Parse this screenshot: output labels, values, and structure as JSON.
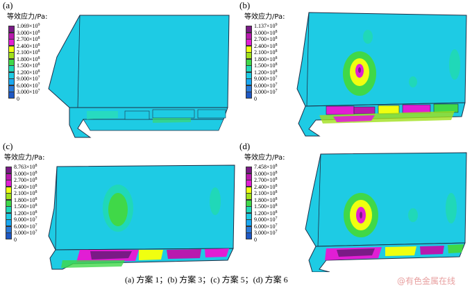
{
  "legend_title": "等效应力/Pa:",
  "colors": [
    "#7a1a86",
    "#b81aae",
    "#e11ed4",
    "#f0ff10",
    "#a0e01c",
    "#40d848",
    "#20d8b8",
    "#1ecbe4",
    "#1aa8f0",
    "#2a7ad8",
    "#1e58c4"
  ],
  "panels": [
    {
      "label": "(a)",
      "legend": [
        {
          "m": "1.069",
          "e": "9"
        },
        {
          "m": "3.000",
          "e": "8"
        },
        {
          "m": "2.700",
          "e": "8"
        },
        {
          "m": "2.400",
          "e": "8"
        },
        {
          "m": "2.100",
          "e": "8"
        },
        {
          "m": "1.800",
          "e": "8"
        },
        {
          "m": "1.500",
          "e": "8"
        },
        {
          "m": "1.200",
          "e": "8"
        },
        {
          "m": "9.000",
          "e": "7"
        },
        {
          "m": "6.000",
          "e": "7"
        },
        {
          "m": "3.000",
          "e": "7"
        },
        {
          "m": "0",
          "e": ""
        }
      ]
    },
    {
      "label": "(b)",
      "legend": [
        {
          "m": "1.137",
          "e": "9"
        },
        {
          "m": "3.000",
          "e": "8"
        },
        {
          "m": "2.700",
          "e": "8"
        },
        {
          "m": "2.400",
          "e": "8"
        },
        {
          "m": "2.100",
          "e": "8"
        },
        {
          "m": "1.800",
          "e": "8"
        },
        {
          "m": "1.500",
          "e": "8"
        },
        {
          "m": "1.200",
          "e": "8"
        },
        {
          "m": "9.000",
          "e": "7"
        },
        {
          "m": "6.000",
          "e": "7"
        },
        {
          "m": "3.000",
          "e": "7"
        },
        {
          "m": "0",
          "e": ""
        }
      ]
    },
    {
      "label": "(c)",
      "legend": [
        {
          "m": "8.763",
          "e": "8"
        },
        {
          "m": "3.000",
          "e": "8"
        },
        {
          "m": "2.700",
          "e": "8"
        },
        {
          "m": "2.400",
          "e": "8"
        },
        {
          "m": "2.100",
          "e": "8"
        },
        {
          "m": "1.800",
          "e": "8"
        },
        {
          "m": "1.500",
          "e": "8"
        },
        {
          "m": "1.200",
          "e": "8"
        },
        {
          "m": "9.000",
          "e": "7"
        },
        {
          "m": "6.000",
          "e": "7"
        },
        {
          "m": "3.000",
          "e": "7"
        },
        {
          "m": "0",
          "e": ""
        }
      ]
    },
    {
      "label": "(d)",
      "legend": [
        {
          "m": "7.458",
          "e": "8"
        },
        {
          "m": "3.000",
          "e": "8"
        },
        {
          "m": "2.700",
          "e": "8"
        },
        {
          "m": "2.400",
          "e": "8"
        },
        {
          "m": "2.100",
          "e": "8"
        },
        {
          "m": "1.800",
          "e": "8"
        },
        {
          "m": "1.500",
          "e": "8"
        },
        {
          "m": "1.200",
          "e": "8"
        },
        {
          "m": "9.000",
          "e": "7"
        },
        {
          "m": "6.000",
          "e": "7"
        },
        {
          "m": "3.000",
          "e": "7"
        },
        {
          "m": "0",
          "e": ""
        }
      ]
    }
  ],
  "caption": "(a)  方案 1；(b)  方案 3；(c)  方案 5；(d)  方案 6",
  "watermark": "@有色金属在线"
}
